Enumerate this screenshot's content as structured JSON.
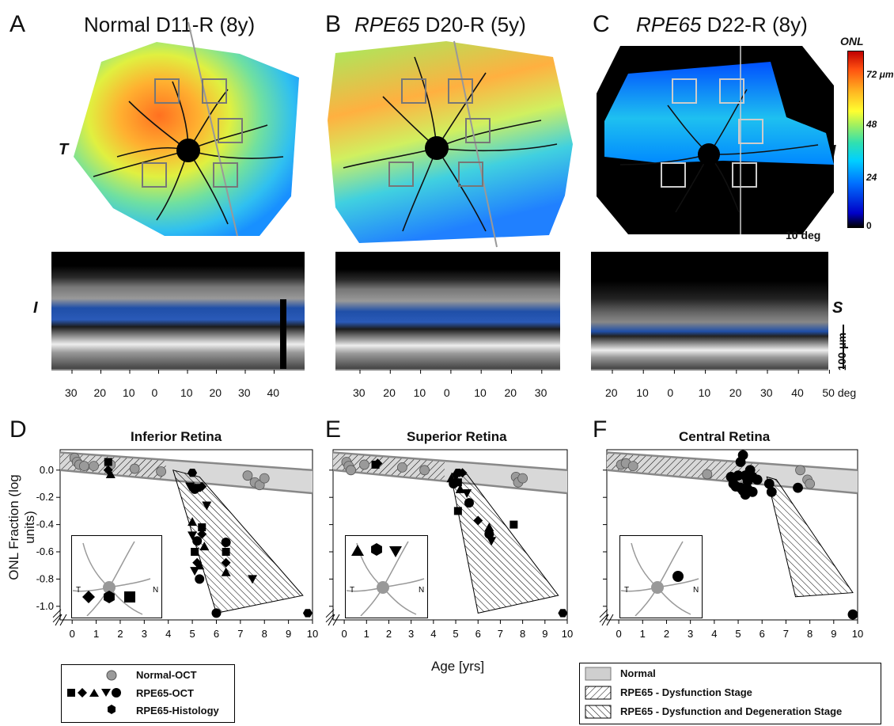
{
  "panels": {
    "A": {
      "letter": "A",
      "title": "Normal D11-R (8y)",
      "side_left": "T",
      "side_oct": "I",
      "oct_ticks": [
        "30",
        "20",
        "10",
        "0",
        "10",
        "20",
        "30",
        "40"
      ]
    },
    "B": {
      "letter": "B",
      "title_gene": "RPE65",
      "title_rest": " D20-R (5y)",
      "oct_ticks": [
        "30",
        "20",
        "10",
        "0",
        "10",
        "20",
        "30"
      ]
    },
    "C": {
      "letter": "C",
      "title_gene": "RPE65",
      "title_rest": " D22-R (8y)",
      "side_right": "N",
      "side_oct": "S",
      "oct_ticks": [
        "20",
        "10",
        "0",
        "10",
        "20",
        "30",
        "40",
        "50 deg"
      ],
      "scalebar_label": "10 deg",
      "oct_scale_label": "100 μm"
    }
  },
  "colorbar": {
    "title": "ONL",
    "ticks": [
      "72 μm",
      "48",
      "24",
      "0"
    ],
    "colors": [
      "#000000",
      "#0000c8",
      "#0070ff",
      "#00d0ff",
      "#30e0b0",
      "#a0f060",
      "#ffff30",
      "#ffb020",
      "#ff5010",
      "#c00000"
    ]
  },
  "chart_data": [
    {
      "type": "scatter",
      "letter": "D",
      "title": "Inferior Retina",
      "ylabel": "ONL Fraction (log units)",
      "xlabel": "Age [yrs]",
      "xlim": [
        -0.5,
        10
      ],
      "ylim": [
        -1.1,
        0.15
      ],
      "yticks": [
        "0.0",
        "-0.2",
        "-0.4",
        "-0.6",
        "-0.8",
        "-1.0"
      ],
      "xticks": [
        "0",
        "1",
        "2",
        "3",
        "4",
        "5",
        "6",
        "7",
        "8",
        "9",
        "10"
      ],
      "normal_band": {
        "upper": [
          [
            -0.5,
            0.13
          ],
          [
            10,
            0.0
          ]
        ],
        "lower": [
          [
            -0.5,
            0.0
          ],
          [
            10,
            -0.17
          ]
        ]
      },
      "degeneration_region": [
        [
          4.2,
          0.0
        ],
        [
          5.3,
          -0.05
        ],
        [
          9.6,
          -0.92
        ],
        [
          6.0,
          -1.05
        ]
      ],
      "series": [
        {
          "name": "Normal-OCT",
          "shape": "circle",
          "color": "#9a9a9a",
          "points": [
            [
              0.1,
              0.09
            ],
            [
              0.2,
              0.06
            ],
            [
              0.3,
              0.04
            ],
            [
              0.5,
              0.03
            ],
            [
              0.9,
              0.03
            ],
            [
              1.6,
              0.04
            ],
            [
              2.6,
              0.01
            ],
            [
              3.7,
              -0.01
            ],
            [
              7.3,
              -0.04
            ],
            [
              7.6,
              -0.09
            ],
            [
              7.8,
              -0.11
            ],
            [
              8.0,
              -0.06
            ]
          ]
        },
        {
          "name": "RPE65-OCT",
          "shape": "mixed",
          "color": "#000000",
          "points": [
            [
              1.5,
              0.06
            ],
            [
              1.5,
              0.0
            ],
            [
              1.6,
              -0.03
            ],
            [
              4.9,
              -0.12
            ],
            [
              5.1,
              -0.14
            ],
            [
              5.2,
              -0.13
            ],
            [
              5.4,
              -0.12
            ],
            [
              5.0,
              -0.38
            ],
            [
              5.0,
              -0.48
            ],
            [
              5.2,
              -0.52
            ],
            [
              5.1,
              -0.6
            ],
            [
              5.2,
              -0.68
            ],
            [
              5.3,
              -0.7
            ],
            [
              5.1,
              -0.74
            ],
            [
              5.3,
              -0.8
            ],
            [
              5.4,
              -0.42
            ],
            [
              5.4,
              -0.47
            ],
            [
              5.5,
              -0.56
            ],
            [
              5.6,
              -0.26
            ],
            [
              6.4,
              -0.53
            ],
            [
              6.4,
              -0.6
            ],
            [
              6.4,
              -0.68
            ],
            [
              6.4,
              -0.75
            ],
            [
              7.5,
              -0.8
            ],
            [
              6.0,
              -1.05
            ]
          ]
        },
        {
          "name": "RPE65-Histology",
          "shape": "star",
          "color": "#000000",
          "points": [
            [
              5.0,
              -0.02
            ],
            [
              9.8,
              -1.05
            ]
          ]
        }
      ]
    },
    {
      "type": "scatter",
      "letter": "E",
      "title": "Superior Retina",
      "xlim": [
        -0.5,
        10
      ],
      "ylim": [
        -1.1,
        0.15
      ],
      "xticks": [
        "0",
        "1",
        "2",
        "3",
        "4",
        "5",
        "6",
        "7",
        "8",
        "9",
        "10"
      ],
      "normal_band": {
        "upper": [
          [
            -0.5,
            0.13
          ],
          [
            10,
            0.0
          ]
        ],
        "lower": [
          [
            -0.5,
            0.0
          ],
          [
            10,
            -0.17
          ]
        ]
      },
      "degeneration_region": [
        [
          4.8,
          -0.05
        ],
        [
          5.5,
          -0.03
        ],
        [
          9.6,
          -0.92
        ],
        [
          6.0,
          -1.05
        ]
      ],
      "series": [
        {
          "name": "Normal-OCT",
          "shape": "circle",
          "color": "#9a9a9a",
          "points": [
            [
              0.1,
              0.06
            ],
            [
              0.2,
              0.03
            ],
            [
              0.3,
              0.0
            ],
            [
              0.9,
              0.04
            ],
            [
              2.6,
              0.02
            ],
            [
              3.6,
              0.0
            ],
            [
              7.7,
              -0.05
            ],
            [
              7.8,
              -0.09
            ],
            [
              8.0,
              -0.06
            ]
          ]
        },
        {
          "name": "RPE65-OCT",
          "shape": "mixed",
          "color": "#000000",
          "points": [
            [
              1.4,
              0.04
            ],
            [
              1.5,
              0.05
            ],
            [
              4.8,
              -0.06
            ],
            [
              5.0,
              -0.05
            ],
            [
              4.9,
              -0.1
            ],
            [
              5.1,
              -0.09
            ],
            [
              5.3,
              -0.02
            ],
            [
              5.2,
              -0.14
            ],
            [
              5.5,
              -0.17
            ],
            [
              5.6,
              -0.24
            ],
            [
              5.1,
              -0.3
            ],
            [
              6.0,
              -0.37
            ],
            [
              6.5,
              -0.42
            ],
            [
              6.6,
              -0.52
            ],
            [
              6.5,
              -0.47
            ],
            [
              7.6,
              -0.4
            ]
          ]
        },
        {
          "name": "RPE65-Histology",
          "shape": "star",
          "color": "#000000",
          "points": [
            [
              5.1,
              -0.02
            ],
            [
              9.8,
              -1.05
            ]
          ]
        }
      ]
    },
    {
      "type": "scatter",
      "letter": "F",
      "title": "Central Retina",
      "xlim": [
        -0.5,
        10
      ],
      "ylim": [
        -1.1,
        0.15
      ],
      "xticks": [
        "0",
        "1",
        "2",
        "3",
        "4",
        "5",
        "6",
        "7",
        "8",
        "9",
        "10"
      ],
      "normal_band": {
        "upper": [
          [
            -0.5,
            0.13
          ],
          [
            10,
            0.0
          ]
        ],
        "lower": [
          [
            -0.5,
            0.0
          ],
          [
            10,
            -0.17
          ]
        ]
      },
      "degeneration_region": [
        [
          6.2,
          -0.05
        ],
        [
          6.6,
          -0.07
        ],
        [
          9.8,
          -0.9
        ],
        [
          7.4,
          -0.93
        ]
      ],
      "series": [
        {
          "name": "Normal-OCT",
          "shape": "circle",
          "color": "#9a9a9a",
          "points": [
            [
              0.1,
              0.04
            ],
            [
              0.3,
              0.05
            ],
            [
              0.6,
              0.03
            ],
            [
              3.7,
              -0.03
            ],
            [
              7.6,
              0.0
            ],
            [
              7.9,
              -0.07
            ],
            [
              8.0,
              -0.1
            ]
          ]
        },
        {
          "name": "RPE65-OCT",
          "shape": "circle",
          "color": "#000000",
          "points": [
            [
              4.7,
              -0.05
            ],
            [
              4.8,
              -0.1
            ],
            [
              4.9,
              -0.12
            ],
            [
              5.0,
              -0.04
            ],
            [
              5.1,
              -0.13
            ],
            [
              5.1,
              0.06
            ],
            [
              5.2,
              0.11
            ],
            [
              5.2,
              -0.15
            ],
            [
              5.3,
              -0.04
            ],
            [
              5.3,
              -0.18
            ],
            [
              5.4,
              -0.08
            ],
            [
              5.4,
              -0.14
            ],
            [
              5.5,
              0.0
            ],
            [
              5.6,
              -0.05
            ],
            [
              5.6,
              -0.16
            ],
            [
              5.8,
              -0.07
            ],
            [
              6.3,
              -0.1
            ],
            [
              6.4,
              -0.16
            ],
            [
              7.5,
              -0.13
            ],
            [
              9.8,
              -1.06
            ]
          ]
        }
      ]
    }
  ],
  "legend_left": {
    "items": [
      "Normal-OCT",
      "RPE65-OCT",
      "RPE65-Histology"
    ]
  },
  "legend_right": {
    "items": [
      "Normal",
      "RPE65 - Dysfunction Stage",
      "RPE65 - Dysfunction and Degeneration Stage"
    ]
  },
  "insets": [
    {
      "T": "T",
      "N": "N"
    },
    {
      "T": "T",
      "N": "N"
    },
    {
      "T": "T",
      "N": "N"
    }
  ]
}
